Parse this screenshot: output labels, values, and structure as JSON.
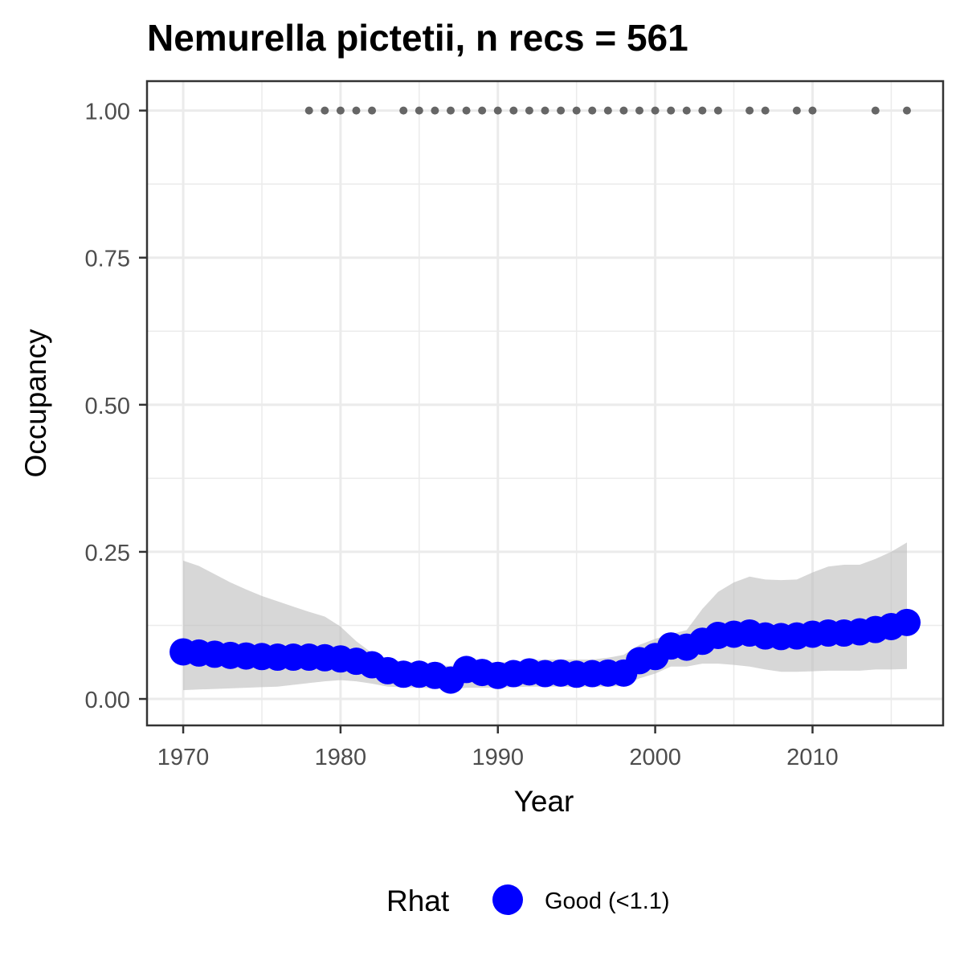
{
  "chart_data": {
    "type": "line",
    "title": "Nemurella pictetii, n recs = 561",
    "xlabel": "Year",
    "ylabel": "Occupancy",
    "xlim": [
      1967.7,
      2018.3
    ],
    "ylim": [
      -0.045,
      1.05
    ],
    "x_ticks": [
      1970,
      1980,
      1990,
      2000,
      2010
    ],
    "x_tick_labels": [
      "1970",
      "1980",
      "1990",
      "2000",
      "2010"
    ],
    "y_ticks": [
      0,
      0.25,
      0.5,
      0.75,
      1
    ],
    "y_tick_labels": [
      "0.00",
      "0.25",
      "0.50",
      "0.75",
      "1.00"
    ],
    "grid": true,
    "colors": {
      "series": "#0000ff",
      "ribbon": "#bdbdbd",
      "records": "#666666",
      "grid": "#ebebeb",
      "frame": "#333333"
    },
    "legend": {
      "title": "Rhat",
      "position": "bottom",
      "entries": [
        {
          "label": "Good (<1.1)",
          "color": "#0000ff"
        }
      ]
    },
    "series": [
      {
        "name": "Good (<1.1)",
        "x": [
          1970,
          1971,
          1972,
          1973,
          1974,
          1975,
          1976,
          1977,
          1978,
          1979,
          1980,
          1981,
          1982,
          1983,
          1984,
          1985,
          1986,
          1987,
          1988,
          1989,
          1990,
          1991,
          1992,
          1993,
          1994,
          1995,
          1996,
          1997,
          1998,
          1999,
          2000,
          2001,
          2002,
          2003,
          2004,
          2005,
          2006,
          2007,
          2008,
          2009,
          2010,
          2011,
          2012,
          2013,
          2014,
          2015,
          2016
        ],
        "y": [
          0.08,
          0.078,
          0.076,
          0.074,
          0.073,
          0.072,
          0.071,
          0.071,
          0.071,
          0.07,
          0.068,
          0.064,
          0.058,
          0.048,
          0.042,
          0.042,
          0.04,
          0.032,
          0.05,
          0.045,
          0.04,
          0.043,
          0.046,
          0.043,
          0.044,
          0.042,
          0.043,
          0.044,
          0.044,
          0.065,
          0.072,
          0.09,
          0.088,
          0.098,
          0.108,
          0.11,
          0.112,
          0.107,
          0.106,
          0.107,
          0.11,
          0.112,
          0.112,
          0.114,
          0.118,
          0.123,
          0.13
        ],
        "lower": [
          0.015,
          0.016,
          0.017,
          0.018,
          0.019,
          0.02,
          0.021,
          0.024,
          0.027,
          0.03,
          0.032,
          0.03,
          0.026,
          0.021,
          0.02,
          0.019,
          0.018,
          0.016,
          0.019,
          0.019,
          0.019,
          0.02,
          0.021,
          0.021,
          0.021,
          0.02,
          0.021,
          0.021,
          0.022,
          0.035,
          0.043,
          0.055,
          0.055,
          0.06,
          0.06,
          0.058,
          0.055,
          0.05,
          0.046,
          0.046,
          0.047,
          0.048,
          0.048,
          0.048,
          0.05,
          0.05,
          0.051
        ],
        "upper": [
          0.235,
          0.226,
          0.212,
          0.198,
          0.186,
          0.175,
          0.166,
          0.157,
          0.148,
          0.14,
          0.123,
          0.098,
          0.078,
          0.068,
          0.063,
          0.062,
          0.058,
          0.056,
          0.062,
          0.063,
          0.062,
          0.063,
          0.066,
          0.067,
          0.067,
          0.067,
          0.067,
          0.07,
          0.075,
          0.092,
          0.102,
          0.11,
          0.117,
          0.153,
          0.182,
          0.198,
          0.208,
          0.203,
          0.202,
          0.203,
          0.215,
          0.225,
          0.228,
          0.228,
          0.238,
          0.25,
          0.266
        ]
      }
    ],
    "records": {
      "y": 1,
      "x": [
        1978,
        1979,
        1980,
        1981,
        1982,
        1984,
        1985,
        1986,
        1987,
        1988,
        1989,
        1990,
        1991,
        1992,
        1993,
        1994,
        1995,
        1996,
        1997,
        1998,
        1999,
        2000,
        2001,
        2002,
        2003,
        2004,
        2006,
        2007,
        2009,
        2010,
        2014,
        2016
      ]
    }
  }
}
